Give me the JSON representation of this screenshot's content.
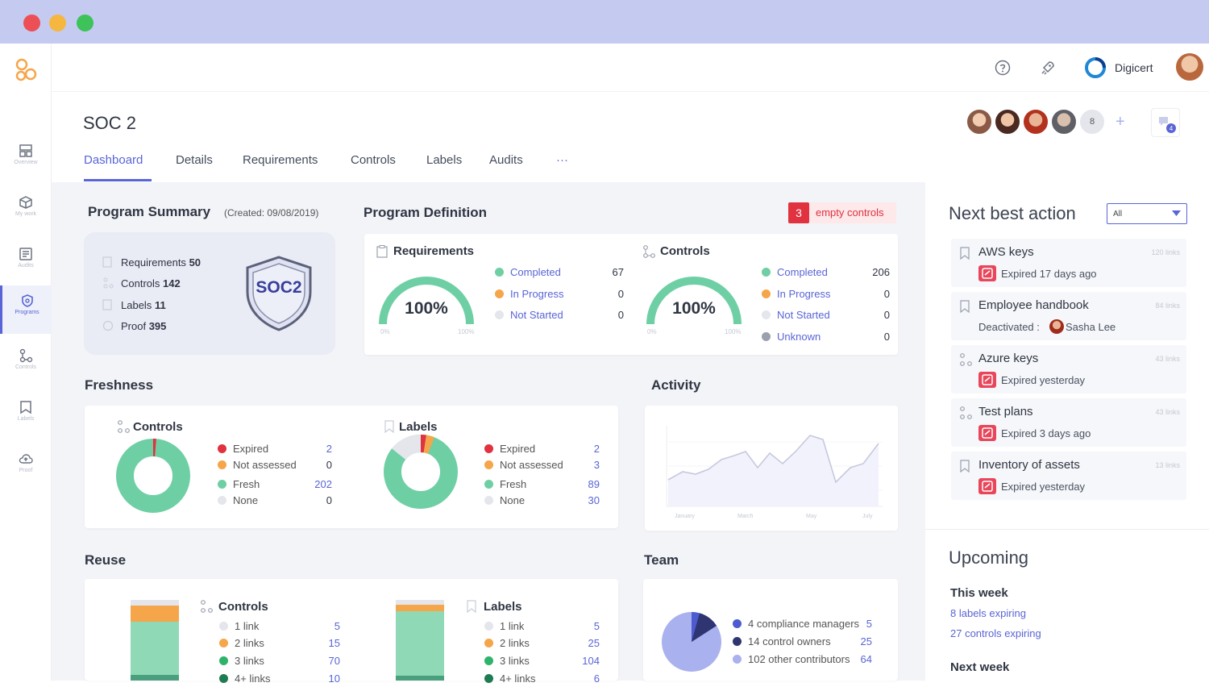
{
  "window": {
    "controls": [
      "close",
      "minimize",
      "maximize"
    ]
  },
  "colors": {
    "accent": "#5965d6",
    "green": "#6fcfa4",
    "orange": "#f5a64a",
    "red": "#e8465b",
    "grey": "#e0e2e8",
    "navy": "#2e3570",
    "lavender": "#a9b1ee"
  },
  "topbar": {
    "org_name": "Digicert"
  },
  "sidebar": {
    "items": [
      {
        "label": "Overview",
        "icon": "dashboard-icon"
      },
      {
        "label": "My work",
        "icon": "box-icon"
      },
      {
        "label": "Audits",
        "icon": "audit-icon"
      },
      {
        "label": "Programs",
        "icon": "shield-icon"
      },
      {
        "label": "Controls",
        "icon": "controls-icon"
      },
      {
        "label": "Labels",
        "icon": "label-icon"
      },
      {
        "label": "Proof",
        "icon": "cloud-icon"
      }
    ]
  },
  "page": {
    "title": "SOC 2",
    "team_count": "8"
  },
  "tabs": [
    "Dashboard",
    "Details",
    "Requirements",
    "Controls",
    "Labels",
    "Audits",
    "···"
  ],
  "summary": {
    "title": "Program Summary",
    "created": "(Created: 09/08/2019)",
    "badge": "SOC2",
    "rows": [
      {
        "label": "Requirements",
        "value": "50"
      },
      {
        "label": "Controls",
        "value": "142"
      },
      {
        "label": "Labels",
        "value": "11"
      },
      {
        "label": "Proof",
        "value": "395"
      }
    ]
  },
  "definition": {
    "title": "Program Definition",
    "empty_count": "3",
    "empty_label": "empty controls",
    "requirements": {
      "title": "Requirements",
      "percent": "100%",
      "min": "0%",
      "max": "100%",
      "rows": [
        {
          "label": "Completed",
          "value": "67"
        },
        {
          "label": "In Progress",
          "value": "0"
        },
        {
          "label": "Not Started",
          "value": "0"
        }
      ]
    },
    "controls": {
      "title": "Controls",
      "percent": "100%",
      "min": "0%",
      "max": "100%",
      "rows": [
        {
          "label": "Completed",
          "value": "206"
        },
        {
          "label": "In Progress",
          "value": "0"
        },
        {
          "label": "Not Started",
          "value": "0"
        },
        {
          "label": "Unknown",
          "value": "0"
        }
      ]
    }
  },
  "freshness": {
    "title": "Freshness",
    "controls": {
      "title": "Controls",
      "rows": [
        {
          "label": "Expired",
          "value": "2"
        },
        {
          "label": "Not assessed",
          "value": "0"
        },
        {
          "label": "Fresh",
          "value": "202"
        },
        {
          "label": "None",
          "value": "0"
        }
      ]
    },
    "labels": {
      "title": "Labels",
      "rows": [
        {
          "label": "Expired",
          "value": "2"
        },
        {
          "label": "Not assessed",
          "value": "3"
        },
        {
          "label": "Fresh",
          "value": "89"
        },
        {
          "label": "None",
          "value": "30"
        }
      ]
    }
  },
  "activity": {
    "title": "Activity",
    "x_labels": [
      "January",
      "March",
      "May",
      "July"
    ]
  },
  "reuse": {
    "title": "Reuse",
    "controls": {
      "title": "Controls",
      "rows": [
        {
          "label": "1 link",
          "value": "5"
        },
        {
          "label": "2 links",
          "value": "15"
        },
        {
          "label": "3 links",
          "value": "70"
        },
        {
          "label": "4+ links",
          "value": "10"
        }
      ]
    },
    "labels": {
      "title": "Labels",
      "rows": [
        {
          "label": "1 link",
          "value": "5"
        },
        {
          "label": "2 links",
          "value": "25"
        },
        {
          "label": "3 links",
          "value": "104"
        },
        {
          "label": "4+ links",
          "value": "6"
        }
      ]
    }
  },
  "team": {
    "title": "Team",
    "rows": [
      {
        "label": "4 compliance managers",
        "value": "5"
      },
      {
        "label": "14 control owners",
        "value": "25"
      },
      {
        "label": "102 other contributors",
        "value": "64"
      }
    ]
  },
  "next_best_action": {
    "title": "Next best action",
    "filter": "All",
    "items": [
      {
        "title": "AWS keys",
        "links": "120 links",
        "sub": "Expired 17 days ago",
        "icon": "label-icon"
      },
      {
        "title": "Employee handbook",
        "links": "84 links",
        "sub": "Deactivated :",
        "person": "Sasha Lee",
        "icon": "label-icon"
      },
      {
        "title": "Azure keys",
        "links": "43 links",
        "sub": "Expired yesterday",
        "icon": "controls-icon"
      },
      {
        "title": "Test plans",
        "links": "43 links",
        "sub": "Expired 3 days ago",
        "icon": "controls-icon"
      },
      {
        "title": "Inventory of assets",
        "links": "13 links",
        "sub": "Expired yesterday",
        "icon": "label-icon"
      }
    ]
  },
  "upcoming": {
    "title": "Upcoming",
    "this_week": "This week",
    "this_week_items": [
      "8 labels expiring",
      "27 controls expiring"
    ],
    "next_week": "Next week"
  }
}
